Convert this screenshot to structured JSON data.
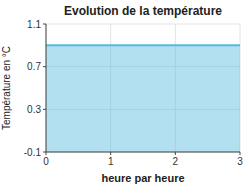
{
  "chart_data": {
    "type": "area",
    "title": "Evolution de la température",
    "xlabel": "heure par heure",
    "ylabel": "Température en °C",
    "x": [
      0,
      3
    ],
    "values": [
      0.9,
      0.9
    ],
    "color": "#55bbdd",
    "xlim": [
      0,
      3
    ],
    "ylim": [
      -0.1,
      1.1
    ],
    "xticks": [
      0,
      1,
      2,
      3
    ],
    "yticks": [
      -0.1,
      0.3,
      0.7,
      1.1
    ],
    "grid": true
  }
}
